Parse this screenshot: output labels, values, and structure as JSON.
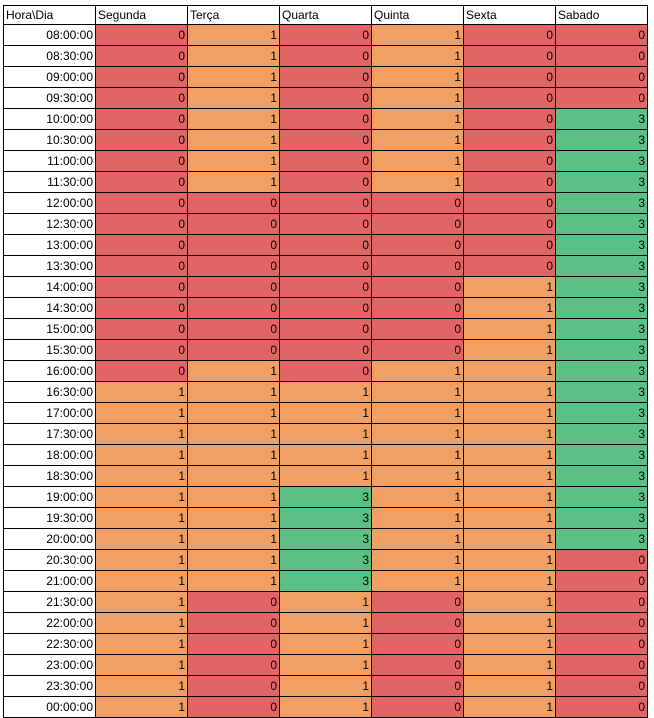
{
  "header": [
    "Hora\\Dia",
    "Segunda",
    "Terça",
    "Quarta",
    "Quinta",
    "Sexta",
    "Sabado"
  ],
  "colors": {
    "0": "#e06666",
    "1": "#f0a064",
    "3": "#5cbf86"
  },
  "rows": [
    {
      "time": "08:00:00",
      "values": [
        0,
        1,
        0,
        1,
        0,
        0
      ]
    },
    {
      "time": "08:30:00",
      "values": [
        0,
        1,
        0,
        1,
        0,
        0
      ]
    },
    {
      "time": "09:00:00",
      "values": [
        0,
        1,
        0,
        1,
        0,
        0
      ]
    },
    {
      "time": "09:30:00",
      "values": [
        0,
        1,
        0,
        1,
        0,
        0
      ]
    },
    {
      "time": "10:00:00",
      "values": [
        0,
        1,
        0,
        1,
        0,
        3
      ]
    },
    {
      "time": "10:30:00",
      "values": [
        0,
        1,
        0,
        1,
        0,
        3
      ]
    },
    {
      "time": "11:00:00",
      "values": [
        0,
        1,
        0,
        1,
        0,
        3
      ]
    },
    {
      "time": "11:30:00",
      "values": [
        0,
        1,
        0,
        1,
        0,
        3
      ]
    },
    {
      "time": "12:00:00",
      "values": [
        0,
        0,
        0,
        0,
        0,
        3
      ]
    },
    {
      "time": "12:30:00",
      "values": [
        0,
        0,
        0,
        0,
        0,
        3
      ]
    },
    {
      "time": "13:00:00",
      "values": [
        0,
        0,
        0,
        0,
        0,
        3
      ]
    },
    {
      "time": "13:30:00",
      "values": [
        0,
        0,
        0,
        0,
        0,
        3
      ]
    },
    {
      "time": "14:00:00",
      "values": [
        0,
        0,
        0,
        0,
        1,
        3
      ]
    },
    {
      "time": "14:30:00",
      "values": [
        0,
        0,
        0,
        0,
        1,
        3
      ]
    },
    {
      "time": "15:00:00",
      "values": [
        0,
        0,
        0,
        0,
        1,
        3
      ]
    },
    {
      "time": "15:30:00",
      "values": [
        0,
        0,
        0,
        0,
        1,
        3
      ]
    },
    {
      "time": "16:00:00",
      "values": [
        0,
        1,
        0,
        1,
        1,
        3
      ]
    },
    {
      "time": "16:30:00",
      "values": [
        1,
        1,
        1,
        1,
        1,
        3
      ]
    },
    {
      "time": "17:00:00",
      "values": [
        1,
        1,
        1,
        1,
        1,
        3
      ]
    },
    {
      "time": "17:30:00",
      "values": [
        1,
        1,
        1,
        1,
        1,
        3
      ]
    },
    {
      "time": "18:00:00",
      "values": [
        1,
        1,
        1,
        1,
        1,
        3
      ]
    },
    {
      "time": "18:30:00",
      "values": [
        1,
        1,
        1,
        1,
        1,
        3
      ]
    },
    {
      "time": "19:00:00",
      "values": [
        1,
        1,
        3,
        1,
        1,
        3
      ]
    },
    {
      "time": "19:30:00",
      "values": [
        1,
        1,
        3,
        1,
        1,
        3
      ]
    },
    {
      "time": "20:00:00",
      "values": [
        1,
        1,
        3,
        1,
        1,
        3
      ]
    },
    {
      "time": "20:30:00",
      "values": [
        1,
        1,
        3,
        1,
        1,
        0
      ]
    },
    {
      "time": "21:00:00",
      "values": [
        1,
        1,
        3,
        1,
        1,
        0
      ]
    },
    {
      "time": "21:30:00",
      "values": [
        1,
        0,
        1,
        0,
        1,
        0
      ]
    },
    {
      "time": "22:00:00",
      "values": [
        1,
        0,
        1,
        0,
        1,
        0
      ]
    },
    {
      "time": "22:30:00",
      "values": [
        1,
        0,
        1,
        0,
        1,
        0
      ]
    },
    {
      "time": "23:00:00",
      "values": [
        1,
        0,
        1,
        0,
        1,
        0
      ]
    },
    {
      "time": "23:30:00",
      "values": [
        1,
        0,
        1,
        0,
        1,
        0
      ]
    },
    {
      "time": "00:00:00",
      "values": [
        1,
        0,
        1,
        0,
        1,
        0
      ]
    }
  ]
}
